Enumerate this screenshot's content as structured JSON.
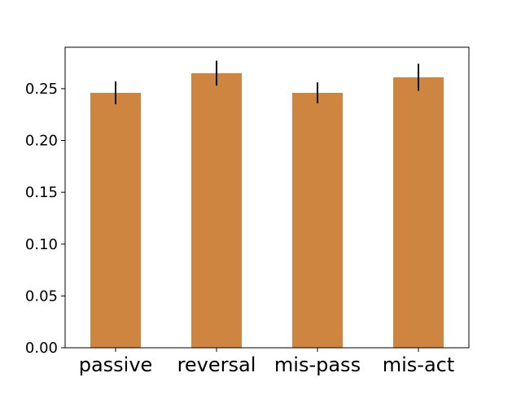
{
  "chart_data": {
    "type": "bar",
    "categories": [
      "passive",
      "reversal",
      "mis-pass",
      "mis-act"
    ],
    "values": [
      0.246,
      0.265,
      0.246,
      0.261
    ],
    "errors": [
      0.011,
      0.012,
      0.01,
      0.013
    ],
    "title": "",
    "xlabel": "",
    "ylabel": "",
    "ylim": [
      0,
      0.29
    ],
    "yticks": [
      "0.00",
      "0.05",
      "0.10",
      "0.15",
      "0.20",
      "0.25"
    ],
    "grid": false,
    "legend": "none",
    "colors": {
      "bar": "#cd853f",
      "error_bar": "#000000",
      "axes": "#000000",
      "background": "#ffffff"
    }
  }
}
